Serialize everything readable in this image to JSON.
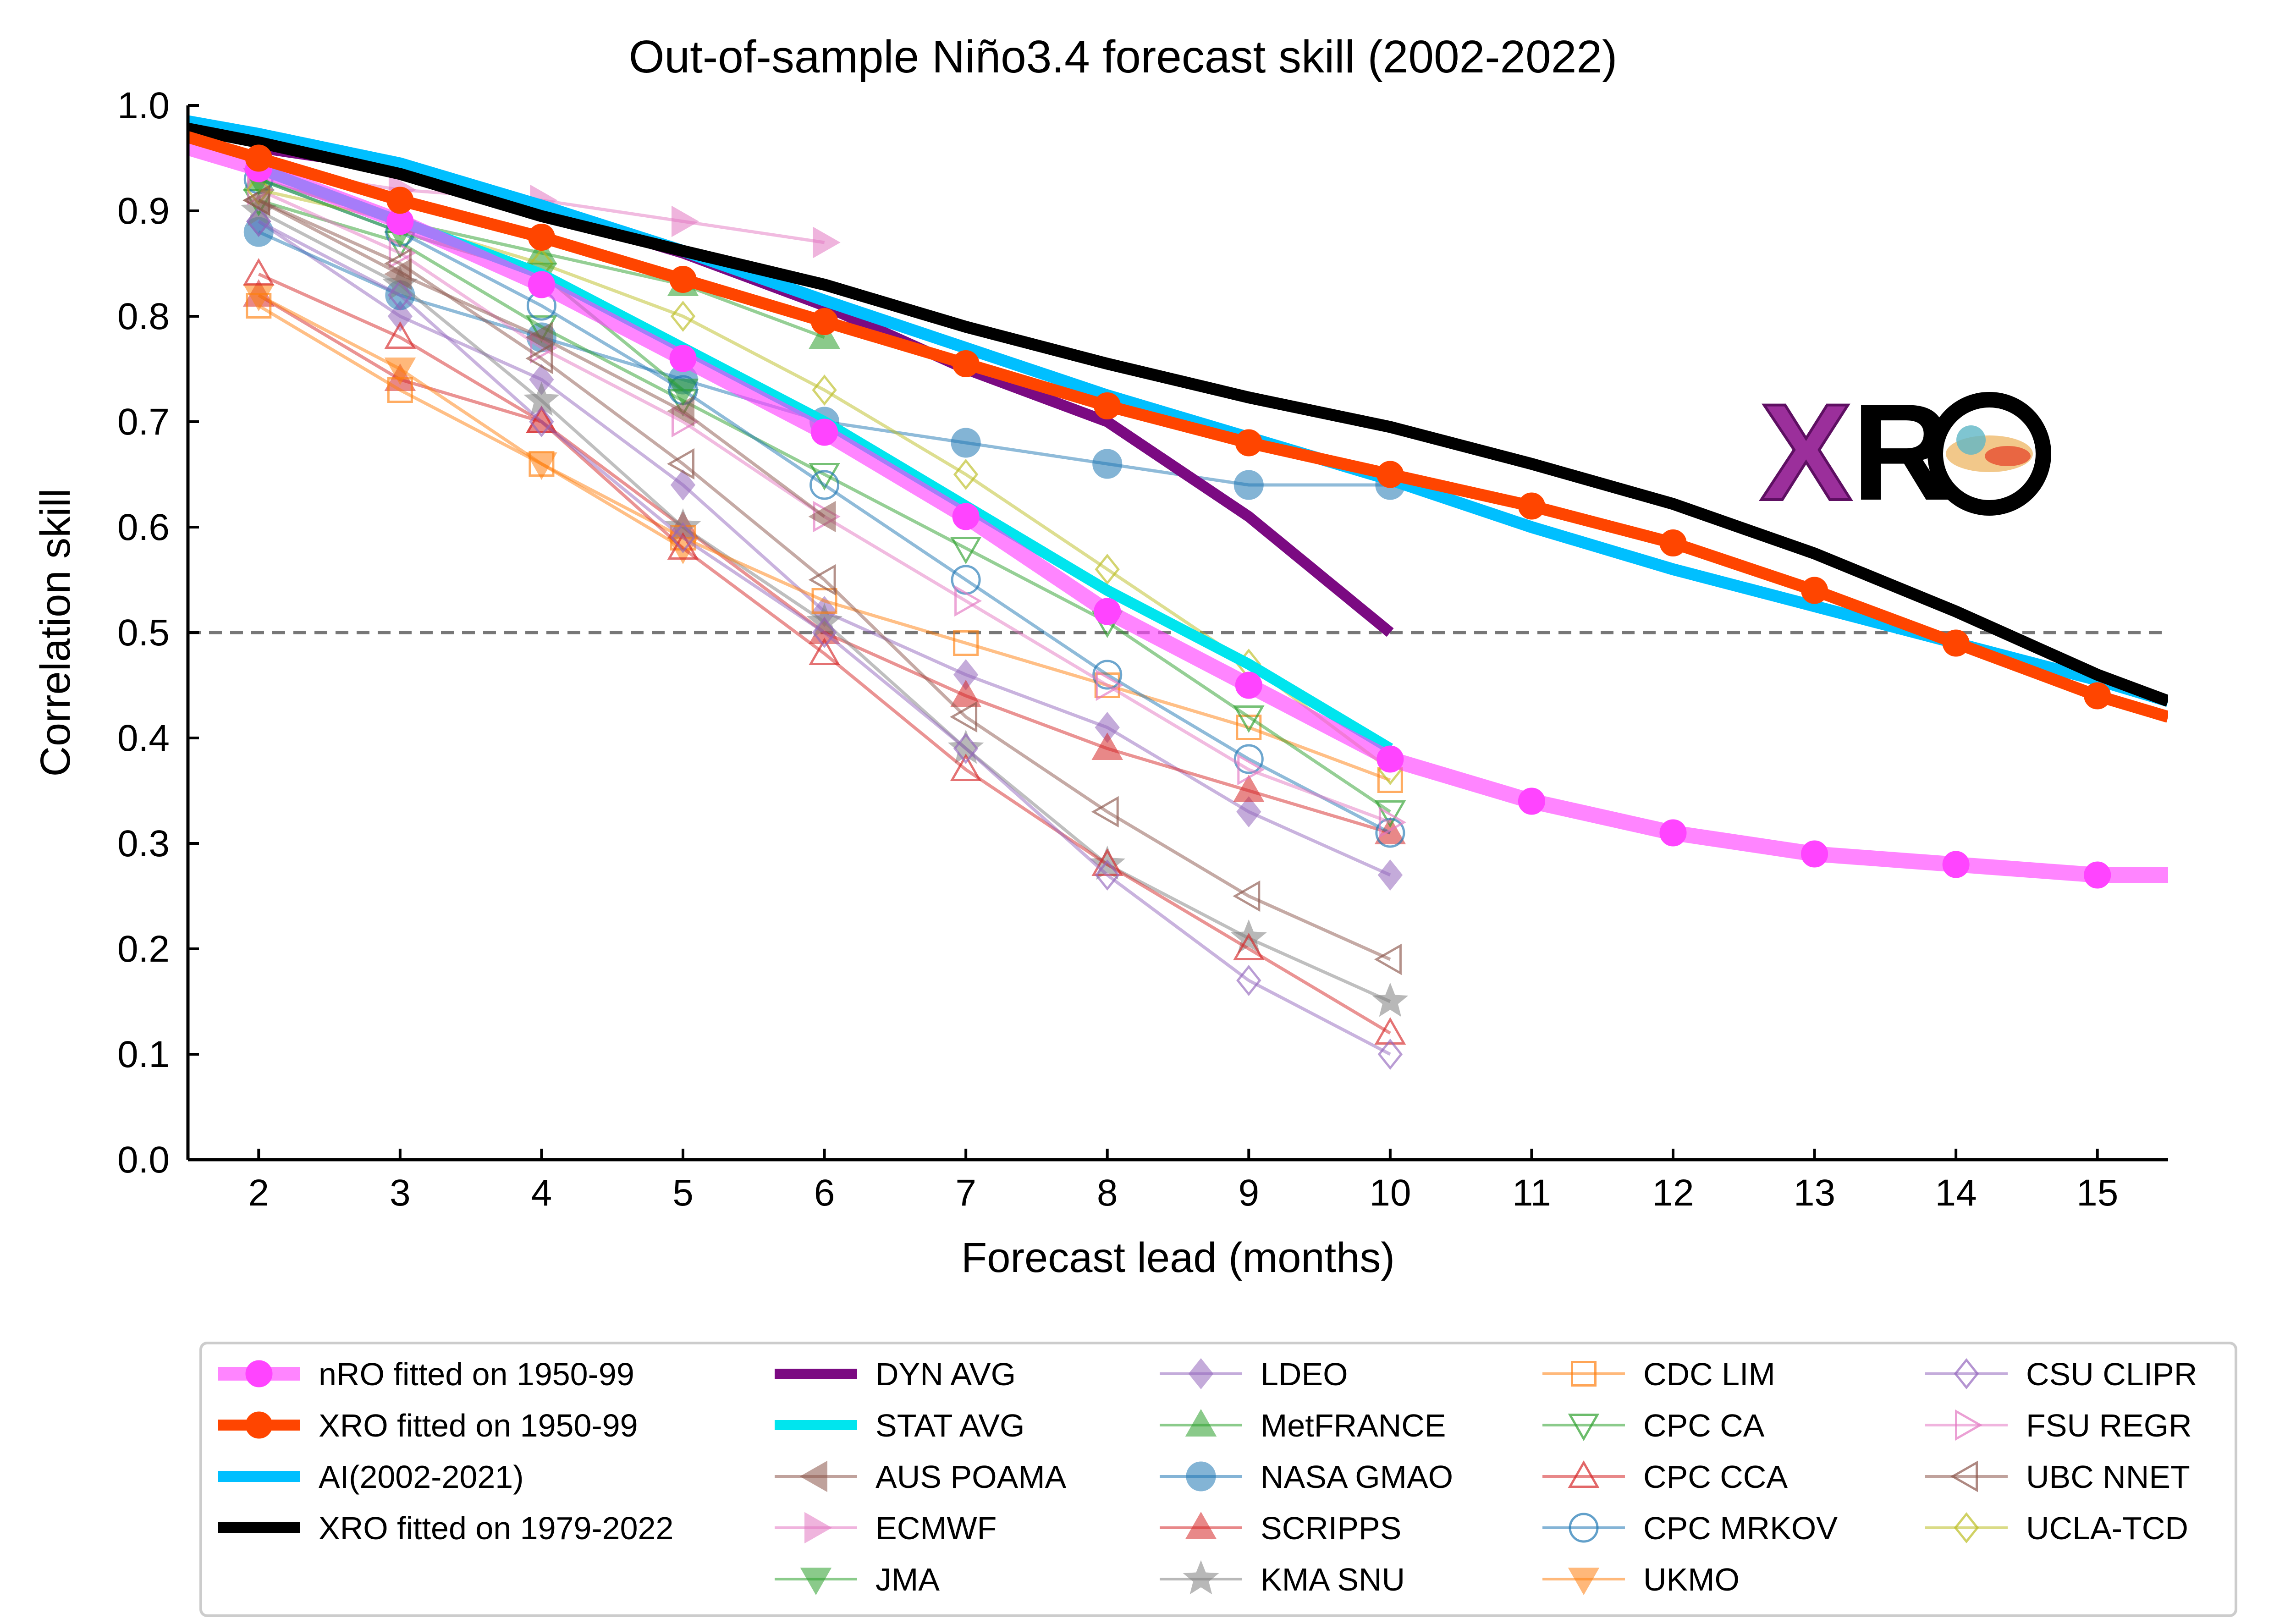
{
  "chart_data": {
    "type": "line",
    "title": "Out-of-sample Niño3.4 forecast skill (2002-2022)",
    "xlabel": "Forecast lead (months)",
    "ylabel": "Correlation skill",
    "xlim": [
      1.5,
      15.5
    ],
    "ylim": [
      0.0,
      1.0
    ],
    "xticks": [
      "2",
      "3",
      "4",
      "5",
      "6",
      "7",
      "8",
      "9",
      "10",
      "11",
      "12",
      "13",
      "14",
      "15"
    ],
    "yticks": [
      "0.0",
      "0.1",
      "0.2",
      "0.3",
      "0.4",
      "0.5",
      "0.6",
      "0.7",
      "0.8",
      "0.9",
      "1.0"
    ],
    "reference_line": 0.5,
    "grid": false,
    "legend_position": "bottom",
    "logo": "XRO",
    "series": [
      {
        "name": "LDEO",
        "style": "model",
        "color": "#9467bd",
        "marker": "diamond",
        "filled": true,
        "x": [
          2,
          3,
          4,
          5,
          6,
          7,
          8,
          9,
          10
        ],
        "y": [
          0.89,
          0.8,
          0.74,
          0.64,
          0.52,
          0.46,
          0.41,
          0.33,
          0.27
        ]
      },
      {
        "name": "MetFRANCE",
        "style": "model",
        "color": "#2ca02c",
        "marker": "triangle-up",
        "filled": true,
        "x": [
          2,
          3,
          4,
          5,
          6
        ],
        "y": [
          0.93,
          0.89,
          0.86,
          0.83,
          0.78
        ]
      },
      {
        "name": "NASA GMAO",
        "style": "model",
        "color": "#1f77b4",
        "marker": "circle",
        "filled": true,
        "x": [
          2,
          3,
          4,
          5,
          6,
          7,
          8,
          9,
          10
        ],
        "y": [
          0.88,
          0.82,
          0.78,
          0.74,
          0.7,
          0.68,
          0.66,
          0.64,
          0.64
        ]
      },
      {
        "name": "SCRIPPS",
        "style": "model",
        "color": "#d62728",
        "marker": "triangle-up",
        "filled": true,
        "x": [
          2,
          3,
          4,
          5,
          6,
          7,
          8,
          9,
          10
        ],
        "y": [
          0.82,
          0.74,
          0.7,
          0.6,
          0.5,
          0.44,
          0.39,
          0.35,
          0.31
        ]
      },
      {
        "name": "KMA SNU",
        "style": "model",
        "color": "#7f7f7f",
        "marker": "star",
        "filled": true,
        "x": [
          2,
          3,
          4,
          5,
          6,
          7,
          8,
          9,
          10
        ],
        "y": [
          0.9,
          0.83,
          0.72,
          0.6,
          0.51,
          0.39,
          0.28,
          0.21,
          0.15
        ]
      },
      {
        "name": "UKMO",
        "style": "model",
        "color": "#ff7f0e",
        "marker": "triangle-down",
        "filled": true,
        "x": [
          2,
          3,
          4,
          5
        ],
        "y": [
          0.82,
          0.75,
          0.66,
          0.58
        ]
      },
      {
        "name": "CDC LIM",
        "style": "model",
        "color": "#ff7f0e",
        "marker": "square",
        "filled": false,
        "x": [
          2,
          3,
          4,
          5,
          6,
          7,
          8,
          9,
          10
        ],
        "y": [
          0.81,
          0.73,
          0.66,
          0.59,
          0.53,
          0.49,
          0.45,
          0.41,
          0.36
        ]
      },
      {
        "name": "CPC CA",
        "style": "model",
        "color": "#2ca02c",
        "marker": "triangle-down",
        "filled": false,
        "x": [
          2,
          3,
          4,
          5,
          6,
          7,
          8,
          9,
          10
        ],
        "y": [
          0.91,
          0.87,
          0.79,
          0.72,
          0.65,
          0.58,
          0.51,
          0.42,
          0.33
        ]
      },
      {
        "name": "CPC CCA",
        "style": "model",
        "color": "#d62728",
        "marker": "triangle-up",
        "filled": false,
        "x": [
          2,
          3,
          4,
          5,
          6,
          7,
          8,
          9,
          10
        ],
        "y": [
          0.84,
          0.78,
          0.7,
          0.58,
          0.48,
          0.37,
          0.28,
          0.2,
          0.12
        ]
      },
      {
        "name": "CPC MRKOV",
        "style": "model",
        "color": "#1f77b4",
        "marker": "circle",
        "filled": false,
        "x": [
          2,
          3,
          4,
          5,
          6,
          7,
          8,
          9,
          10
        ],
        "y": [
          0.93,
          0.88,
          0.81,
          0.73,
          0.64,
          0.55,
          0.46,
          0.38,
          0.31
        ]
      },
      {
        "name": "CSU CLIPR",
        "style": "model",
        "color": "#9467bd",
        "marker": "diamond",
        "filled": false,
        "x": [
          2,
          3,
          4,
          5,
          6,
          7,
          8,
          9,
          10
        ],
        "y": [
          0.89,
          0.82,
          0.7,
          0.59,
          0.5,
          0.39,
          0.27,
          0.17,
          0.1
        ]
      },
      {
        "name": "FSU REGR",
        "style": "model",
        "color": "#e377c2",
        "marker": "triangle-right",
        "filled": false,
        "x": [
          2,
          3,
          4,
          5,
          6,
          7,
          8,
          9,
          10
        ],
        "y": [
          0.92,
          0.86,
          0.77,
          0.7,
          0.61,
          0.53,
          0.45,
          0.37,
          0.32
        ]
      },
      {
        "name": "UBC NNET",
        "style": "model",
        "color": "#8c564b",
        "marker": "triangle-left",
        "filled": false,
        "x": [
          2,
          3,
          4,
          5,
          6,
          7,
          8,
          9,
          10
        ],
        "y": [
          0.91,
          0.85,
          0.76,
          0.66,
          0.55,
          0.42,
          0.33,
          0.25,
          0.19
        ]
      },
      {
        "name": "UCLA-TCD",
        "style": "model",
        "color": "#bcbd22",
        "marker": "diamond",
        "filled": false,
        "x": [
          2,
          3,
          4,
          5,
          6,
          7,
          8,
          9,
          10
        ],
        "y": [
          0.92,
          0.89,
          0.85,
          0.8,
          0.73,
          0.65,
          0.56,
          0.47,
          0.37
        ]
      },
      {
        "name": "AUS POAMA",
        "style": "model",
        "color": "#8c564b",
        "marker": "triangle-left",
        "filled": true,
        "x": [
          2,
          3,
          4,
          5,
          6
        ],
        "y": [
          0.91,
          0.84,
          0.78,
          0.71,
          0.61
        ]
      },
      {
        "name": "ECMWF",
        "style": "model",
        "color": "#e377c2",
        "marker": "triangle-right",
        "filled": true,
        "x": [
          2,
          3,
          4,
          5,
          6
        ],
        "y": [
          0.94,
          0.92,
          0.91,
          0.89,
          0.87
        ]
      },
      {
        "name": "JMA",
        "style": "model",
        "color": "#2ca02c",
        "marker": "triangle-down",
        "filled": true,
        "x": [
          2,
          3,
          4,
          5
        ],
        "y": [
          0.93,
          0.88,
          0.84,
          0.73
        ]
      },
      {
        "name": "DYN AVG",
        "style": "thick",
        "color": "#7b0a82",
        "x": [
          2,
          3,
          4,
          5,
          6,
          7,
          8,
          9,
          10
        ],
        "y": [
          0.96,
          0.94,
          0.9,
          0.86,
          0.81,
          0.75,
          0.7,
          0.61,
          0.5
        ]
      },
      {
        "name": "STAT AVG",
        "style": "thick",
        "color": "#00e5ee",
        "x": [
          2,
          3,
          4,
          5,
          6,
          7,
          8,
          9,
          10
        ],
        "y": [
          0.94,
          0.89,
          0.84,
          0.77,
          0.7,
          0.62,
          0.54,
          0.47,
          0.39
        ]
      },
      {
        "name": "nRO fitted on 1950-99",
        "style": "main",
        "color": "#ff44ff",
        "marker": "circle",
        "x": [
          1.5,
          2,
          3,
          4,
          5,
          6,
          7,
          8,
          9,
          10,
          11,
          12,
          13,
          14,
          15,
          15.5
        ],
        "y": [
          0.96,
          0.94,
          0.89,
          0.83,
          0.76,
          0.69,
          0.61,
          0.52,
          0.45,
          0.38,
          0.34,
          0.31,
          0.29,
          0.28,
          0.27,
          0.27
        ]
      },
      {
        "name": "AI(2002-2021)",
        "style": "main",
        "color": "#00bfff",
        "x": [
          1.5,
          2,
          3,
          4,
          5,
          6,
          7,
          8,
          9,
          10,
          11,
          12,
          13,
          14,
          15,
          15.5
        ],
        "y": [
          0.985,
          0.973,
          0.945,
          0.905,
          0.862,
          0.815,
          0.77,
          0.725,
          0.685,
          0.645,
          0.6,
          0.56,
          0.525,
          0.49,
          0.455,
          0.435
        ]
      },
      {
        "name": "XRO fitted on 1979-2022",
        "style": "main",
        "color": "#000000",
        "x": [
          1.5,
          2,
          3,
          4,
          5,
          6,
          7,
          8,
          9,
          10,
          11,
          12,
          13,
          14,
          15,
          15.5
        ],
        "y": [
          0.978,
          0.965,
          0.935,
          0.895,
          0.862,
          0.83,
          0.79,
          0.755,
          0.723,
          0.695,
          0.66,
          0.622,
          0.575,
          0.52,
          0.46,
          0.435
        ]
      },
      {
        "name": "XRO fitted on 1950-99",
        "style": "main",
        "color": "#ff4500",
        "marker": "circle",
        "x": [
          1.5,
          2,
          3,
          4,
          5,
          6,
          7,
          8,
          9,
          10,
          11,
          12,
          13,
          14,
          15,
          15.5
        ],
        "y": [
          0.97,
          0.95,
          0.91,
          0.875,
          0.835,
          0.795,
          0.755,
          0.715,
          0.68,
          0.65,
          0.62,
          0.585,
          0.54,
          0.49,
          0.44,
          0.42
        ]
      }
    ],
    "legend_entries": [
      "nRO fitted on 1950-99",
      "XRO fitted on 1950-99",
      "AI(2002-2021)",
      "XRO fitted on 1979-2022",
      "DYN AVG",
      "STAT AVG",
      "AUS POAMA",
      "ECMWF",
      "JMA",
      "LDEO",
      "MetFRANCE",
      "NASA GMAO",
      "SCRIPPS",
      "KMA SNU",
      "CDC LIM",
      "CPC CA",
      "CPC CCA",
      "CPC MRKOV",
      "UKMO",
      "CSU CLIPR",
      "FSU REGR",
      "UBC NNET",
      "UCLA-TCD"
    ]
  }
}
